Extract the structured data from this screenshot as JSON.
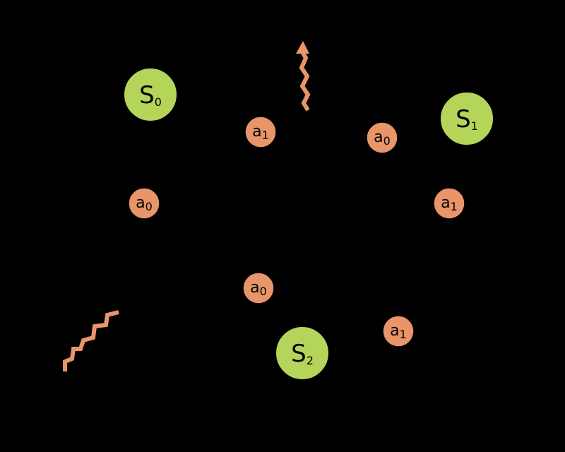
{
  "colors": {
    "background": "#000000",
    "state_fill": "#b5d55a",
    "action_fill": "#e8956a",
    "reward_arrow": "#e8956a",
    "text": "#000000"
  },
  "states": [
    {
      "id": "s0",
      "letter": "S",
      "sub": "0"
    },
    {
      "id": "s1",
      "letter": "S",
      "sub": "1"
    },
    {
      "id": "s2",
      "letter": "S",
      "sub": "2"
    }
  ],
  "actions": [
    {
      "id": "s0-a0",
      "letter": "a",
      "sub": "0"
    },
    {
      "id": "s0-a1",
      "letter": "a",
      "sub": "1"
    },
    {
      "id": "s1-a0",
      "letter": "a",
      "sub": "0"
    },
    {
      "id": "s1-a1",
      "letter": "a",
      "sub": "1"
    },
    {
      "id": "s2-a0",
      "letter": "a",
      "sub": "0"
    },
    {
      "id": "s2-a1",
      "letter": "a",
      "sub": "1"
    }
  ],
  "rewards": [
    {
      "id": "reward-up",
      "icon": "squiggly-arrow-icon"
    },
    {
      "id": "reward-down",
      "icon": "squiggly-arrow-icon"
    }
  ]
}
